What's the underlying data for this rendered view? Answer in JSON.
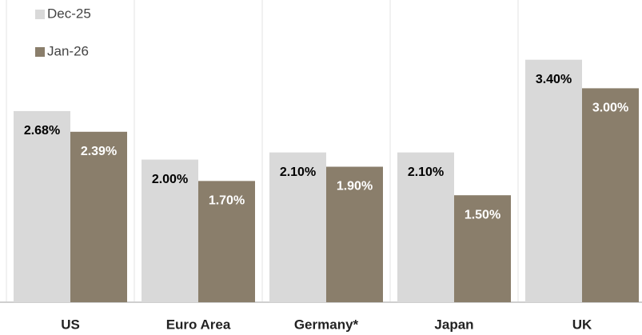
{
  "chart_data": {
    "type": "bar",
    "categories": [
      "US",
      "Euro Area",
      "Germany*",
      "Japan",
      "UK"
    ],
    "series": [
      {
        "name": "Dec-25",
        "color": "#d9d9d9",
        "values": [
          2.68,
          2.0,
          2.1,
          2.1,
          3.4
        ],
        "value_labels": [
          "2.68%",
          "2.00%",
          "2.10%",
          "2.10%",
          "3.40%"
        ]
      },
      {
        "name": "Jan-26",
        "color": "#8a7e6b",
        "values": [
          2.39,
          1.7,
          1.9,
          1.5,
          3.0
        ],
        "value_labels": [
          "2.39%",
          "1.70%",
          "1.90%",
          "1.50%",
          "3.00%"
        ]
      }
    ],
    "legend": "top-left"
  }
}
